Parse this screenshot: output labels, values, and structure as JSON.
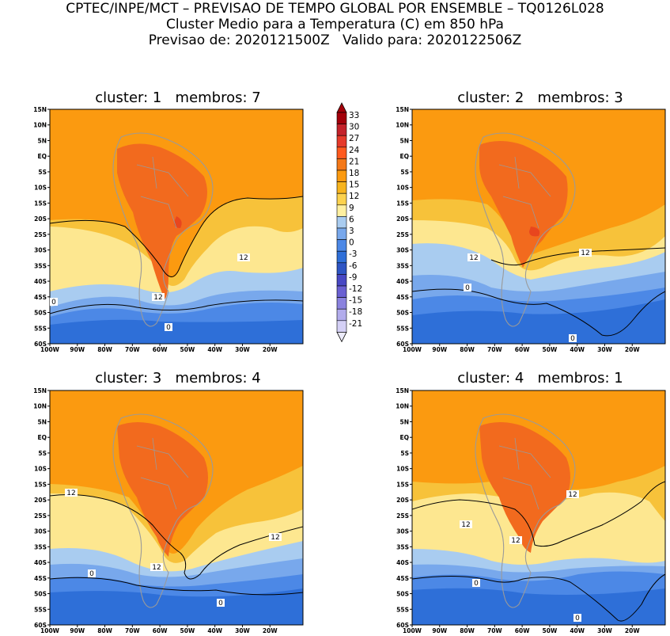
{
  "header": {
    "line1": "CPTEC/INPE/MCT – PREVISAO DE TEMPO GLOBAL POR ENSEMBLE – TQ0126L028",
    "line2": "Cluster Medio para a Temperatura (C) em 850 hPa",
    "line3": "Previsao de: 2020121500Z   Valido para: 2020122506Z"
  },
  "axes": {
    "lat_labels": [
      "15N",
      "10N",
      "5N",
      "EQ",
      "5S",
      "10S",
      "15S",
      "20S",
      "25S",
      "30S",
      "35S",
      "40S",
      "45S",
      "50S",
      "55S",
      "60S"
    ],
    "lon_labels": [
      "100W",
      "90W",
      "80W",
      "70W",
      "60W",
      "50W",
      "40W",
      "30W",
      "20W"
    ]
  },
  "colorbar": {
    "labels": [
      "33",
      "30",
      "27",
      "24",
      "21",
      "18",
      "15",
      "12",
      "9",
      "6",
      "3",
      "0",
      "-3",
      "-6",
      "-9",
      "-12",
      "-15",
      "-18",
      "-21"
    ],
    "colors": [
      "#a3000a",
      "#c4222a",
      "#e63a2a",
      "#ff5a1e",
      "#f47818",
      "#fb9a10",
      "#f7b41e",
      "#fcd24e",
      "#fff0a0",
      "#a9ccf0",
      "#78a8ec",
      "#4c88e6",
      "#2e6fd8",
      "#2e55c4",
      "#4848c4",
      "#6a60d2",
      "#8a82de",
      "#b2acec",
      "#d4d0f6"
    ]
  },
  "panels": [
    {
      "title": "cluster: 1   membros: 7",
      "contour_labels": [
        "12",
        "12",
        "0",
        "0"
      ]
    },
    {
      "title": "cluster: 2   membros: 3",
      "contour_labels": [
        "12",
        "12",
        "0",
        "0"
      ]
    },
    {
      "title": "cluster: 3   membros: 4",
      "contour_labels": [
        "12",
        "12",
        "12",
        "0",
        "0"
      ]
    },
    {
      "title": "cluster: 4   membros: 1",
      "contour_labels": [
        "12",
        "12",
        "12",
        "0",
        "0"
      ]
    }
  ]
}
